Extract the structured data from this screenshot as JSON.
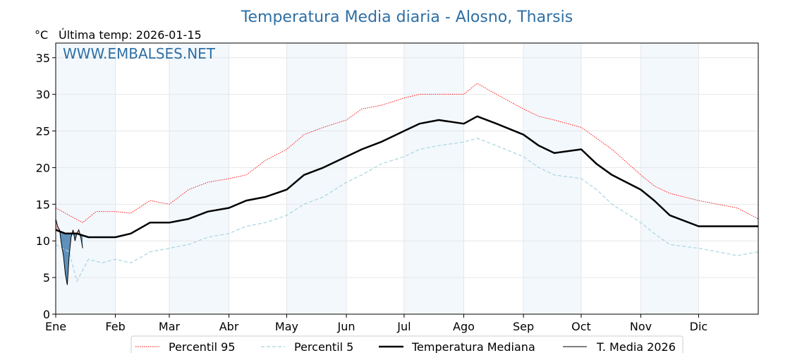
{
  "chart_data": {
    "type": "line",
    "title": "Temperatura Media diaria - Alosno, Tharsis",
    "unit_label": "°C",
    "subtitle": "Última temp: 2026-01-15",
    "watermark": "WWW.EMBALSES.NET",
    "ylim": [
      0,
      37
    ],
    "yticks": [
      0,
      5,
      10,
      15,
      20,
      25,
      30,
      35
    ],
    "xlim": [
      1,
      366
    ],
    "x_unit": "día del año",
    "month_labels": [
      "Ene",
      "Feb",
      "Mar",
      "Abr",
      "May",
      "Jun",
      "Jul",
      "Ago",
      "Sep",
      "Oct",
      "Nov",
      "Dic"
    ],
    "month_starts": [
      1,
      32,
      60,
      91,
      121,
      152,
      182,
      213,
      244,
      274,
      305,
      335
    ],
    "shaded_months": [
      "Ene",
      "Mar",
      "May",
      "Jul",
      "Sep",
      "Nov"
    ],
    "grid": true,
    "legend_position": "bottom",
    "series": [
      {
        "name": "Percentil 95",
        "color": "#ff0000",
        "style": "dotted",
        "x": [
          1,
          8,
          15,
          22,
          32,
          40,
          50,
          60,
          70,
          80,
          91,
          100,
          110,
          121,
          130,
          140,
          152,
          160,
          170,
          182,
          190,
          200,
          213,
          220,
          230,
          244,
          252,
          260,
          274,
          282,
          290,
          305,
          312,
          320,
          335,
          345,
          355,
          366
        ],
        "y": [
          14.5,
          13.5,
          12.5,
          14,
          14,
          13.8,
          15.5,
          15,
          17,
          18,
          18.5,
          19,
          21,
          22.5,
          24.5,
          25.5,
          26.5,
          28,
          28.5,
          29.5,
          30,
          30,
          30,
          31.5,
          30,
          28,
          27,
          26.5,
          25.5,
          24,
          22.5,
          19,
          17.5,
          16.5,
          15.5,
          15,
          14.5,
          13
        ]
      },
      {
        "name": "Percentil 5",
        "color": "#a8d4e0",
        "style": "dashed",
        "x": [
          1,
          8,
          12,
          18,
          25,
          32,
          40,
          50,
          60,
          70,
          80,
          91,
          100,
          110,
          121,
          130,
          140,
          152,
          160,
          170,
          182,
          190,
          200,
          213,
          220,
          230,
          244,
          252,
          260,
          274,
          282,
          290,
          305,
          312,
          320,
          335,
          345,
          355,
          366
        ],
        "y": [
          9.5,
          8.5,
          4.5,
          7.5,
          7,
          7.5,
          7,
          8.5,
          9,
          9.5,
          10.5,
          11,
          12,
          12.5,
          13.5,
          15,
          16,
          18,
          19,
          20.5,
          21.5,
          22.5,
          23,
          23.5,
          24,
          23,
          21.5,
          20,
          19,
          18.5,
          17,
          15,
          12.5,
          11,
          9.5,
          9,
          8.5,
          8,
          8.5
        ]
      },
      {
        "name": "Temperatura Mediana",
        "color": "#000000",
        "style": "solid",
        "x": [
          1,
          6,
          12,
          18,
          25,
          32,
          40,
          50,
          60,
          70,
          80,
          91,
          100,
          110,
          121,
          130,
          140,
          152,
          160,
          170,
          182,
          190,
          200,
          213,
          220,
          230,
          244,
          252,
          260,
          274,
          282,
          290,
          305,
          312,
          320,
          335,
          345,
          355,
          366
        ],
        "y": [
          11.5,
          11,
          11,
          10.5,
          10.5,
          10.5,
          11,
          12.5,
          12.5,
          13,
          14,
          14.5,
          15.5,
          16,
          17,
          19,
          20,
          21.5,
          22.5,
          23.5,
          25,
          26,
          26.5,
          26,
          27,
          26,
          24.5,
          23,
          22,
          22.5,
          20.5,
          19,
          17,
          15.5,
          13.5,
          12,
          12,
          12,
          12
        ]
      },
      {
        "name": "T. Media 2026",
        "color": "#000000",
        "style": "solid-thin",
        "fill_below_p5": "#2e6fa4",
        "fill_above_p95": "#e8a0a0",
        "x": [
          1,
          2,
          3,
          4,
          5,
          6,
          7,
          8,
          9,
          10,
          11,
          12,
          13,
          14,
          15
        ],
        "y": [
          13,
          12,
          11.5,
          9.5,
          8,
          5.5,
          4,
          8,
          10.5,
          11.5,
          10,
          11,
          11.5,
          10.5,
          9
        ]
      }
    ]
  }
}
